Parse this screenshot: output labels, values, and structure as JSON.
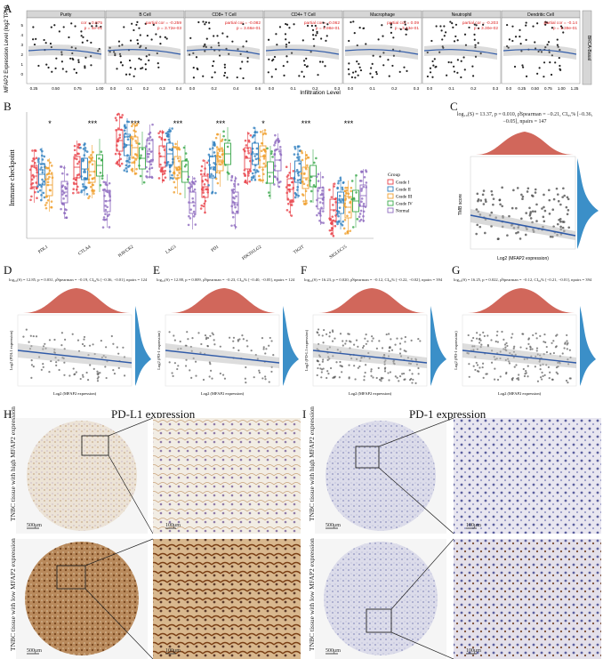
{
  "labels": {
    "A": "A",
    "B": "B",
    "C": "C",
    "D": "D",
    "E": "E",
    "F": "F",
    "G": "G",
    "H": "H",
    "I": "I"
  },
  "panelA": {
    "ylabel": "MFAP2 Expression Level (log2 TPM)",
    "xlabel": "Infiltration Level",
    "row_label": "BRCA-Basal",
    "facets": [
      {
        "name": "Purity",
        "stat1": "cor = 0.075",
        "stat2": "p = 4e-01",
        "ticks": [
          "0.25",
          "0.50",
          "0.75",
          "1.00"
        ]
      },
      {
        "name": "B Cell",
        "stat1": "partial cor = -0.259",
        "stat2": "p = 3.72e-03",
        "ticks": [
          "0.0",
          "0.1",
          "0.2",
          "0.3",
          "0.4"
        ]
      },
      {
        "name": "CD8+ T Cell",
        "stat1": "partial cor = -0.082",
        "stat2": "p = 3.66e-01",
        "ticks": [
          "0.0",
          "0.2",
          "0.4",
          "0.6"
        ]
      },
      {
        "name": "CD4+ T Cell",
        "stat1": "partial cor = -0.062",
        "stat2": "p = 4.98e-01",
        "ticks": [
          "0.0",
          "0.1",
          "0.2",
          "0.3"
        ]
      },
      {
        "name": "Macrophage",
        "stat1": "partial cor = 0.09",
        "stat2": "p = 3.13e-01",
        "ticks": [
          "0.0",
          "0.1",
          "0.2",
          "0.3"
        ]
      },
      {
        "name": "Neutrophil",
        "stat1": "partial cor = -0.203",
        "stat2": "p = 3.30e-02",
        "ticks": [
          "0.0",
          "0.1",
          "0.2",
          "0.3"
        ]
      },
      {
        "name": "Dendritic Cell",
        "stat1": "partial cor = -0.14",
        "stat2": "p = 1.39e-01",
        "ticks": [
          "0.0",
          "0.25",
          "0.50",
          "0.75",
          "1.00",
          "1.25"
        ]
      }
    ],
    "yticks": [
      "5",
      "4",
      "3",
      "2",
      "1",
      "0"
    ]
  },
  "panelB": {
    "ylabel": "Immune checkpoint",
    "genes": [
      "PDL1",
      "CTLA4",
      "HAVCR2",
      "LAG3",
      "PD1",
      "PDCD1LG2",
      "TIGIT",
      "SIGLEC15"
    ],
    "signif": [
      "*",
      "***",
      "***",
      "***",
      "***",
      "*",
      "***",
      "***"
    ],
    "legend_title": "Group",
    "groups": [
      {
        "name": "Grade I",
        "color": "#e8434b"
      },
      {
        "name": "Grade II",
        "color": "#2f7fbf"
      },
      {
        "name": "Grade III",
        "color": "#f0a030"
      },
      {
        "name": "Grade IV",
        "color": "#3aa84b"
      },
      {
        "name": "Normal",
        "color": "#8e6bbf"
      }
    ]
  },
  "panelC": {
    "stats": "log₁₀(S) = 13.37, p = 0.010, ρ̂Spearman = −0.21, CI₉₅% [−0.36, −0.05], npairs = 147",
    "ylabel": "TMB score",
    "xlabel": "Log2 (MFAP2 expression)"
  },
  "panelD": {
    "stats": "log₁₀(S) = 12.85, p = 0.031, ρ̂Spearman = −0.19, CI₉₅% [−0.36, −0.01], npairs = 124",
    "ylabel": "Log2 (PDL1 expression)",
    "xlabel": "Log2 (MFAP2 expression)"
  },
  "panelE": {
    "stats": "log₁₀(S) = 12.88, p = 0.009, ρ̂Spearman = −0.23, CI₉₅% [−0.40, −0.05], npairs = 124",
    "ylabel": "Log2 (PD-1 expression)",
    "xlabel": "Log2 (MFAP2 expression)"
  },
  "panelF": {
    "stats": "log₁₀(S) = 16.23, p = 0.020, ρ̂Spearman = −0.12, CI₉₅% [−0.22, −0.02], npairs = 394",
    "ylabel": "Log2 (PD-L1 expression)",
    "xlabel": "Log2 (MFAP2 expression)"
  },
  "panelG": {
    "stats": "log₁₀(S) = 16.25, p = 0.022, ρ̂Spearman = −0.12, CI₉₅% [−0.21, −0.01], npairs = 394",
    "ylabel": "Log2 (PD-1 expression)",
    "xlabel": "Log2 (MFAP2 expression)"
  },
  "panelH": {
    "title": "PD-L1 expression",
    "row1": "TNBC tissue with high MFAP2 expression",
    "row2": "TNBC tissue with low MFAP2 expression",
    "scale1": "500μm",
    "scale2": "100μm"
  },
  "panelI": {
    "title": "PD-1 expression",
    "row1": "TNBC tissue with high MFAP2 expression",
    "row2": "TNBC tissue with low MFAP2 expression",
    "scale1": "500μm",
    "scale2": "100μm"
  }
}
